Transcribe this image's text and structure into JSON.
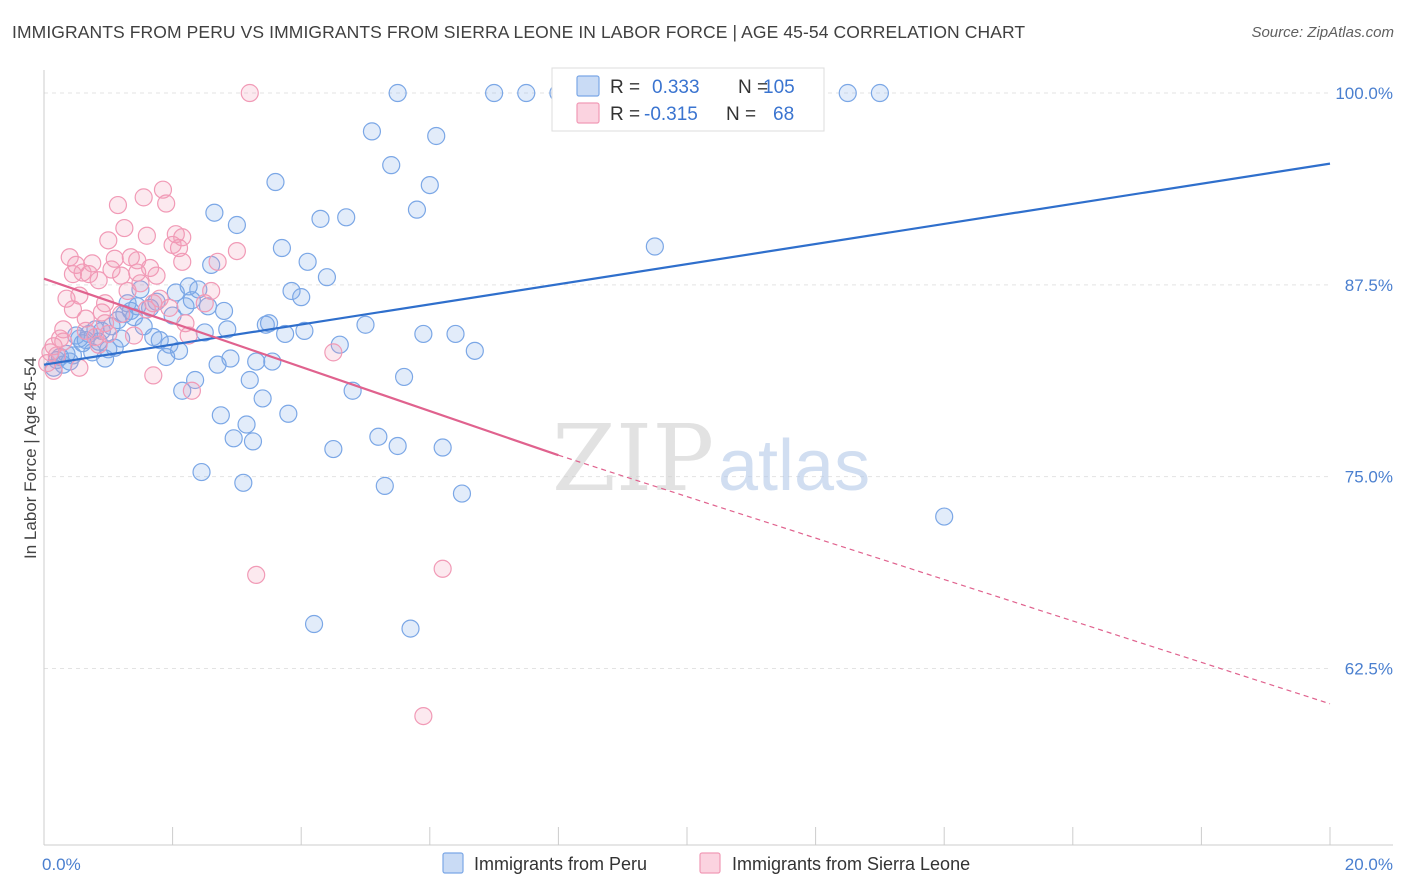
{
  "title": "IMMIGRANTS FROM PERU VS IMMIGRANTS FROM SIERRA LEONE IN LABOR FORCE | AGE 45-54 CORRELATION CHART",
  "source": "Source: ZipAtlas.com",
  "watermark": {
    "zip": "ZIP",
    "atlas": "atlas"
  },
  "legend_top": {
    "r_label": "R =",
    "n_label": "N =",
    "rows": [
      {
        "r": "0.333",
        "n": "105",
        "color": "#7ba7e6"
      },
      {
        "r": "-0.315",
        "n": "68",
        "color": "#f19ab6"
      }
    ]
  },
  "legend_bottom": [
    "Immigrants from Peru",
    "Immigrants from Sierra Leone"
  ],
  "chart_data": {
    "type": "scatter",
    "title": "IMMIGRANTS FROM PERU VS IMMIGRANTS FROM SIERRA LEONE IN LABOR FORCE | AGE 45-54 CORRELATION CHART",
    "xlabel": "",
    "ylabel": "In Labor Force | Age 45-54",
    "xlim": [
      0,
      20
    ],
    "ylim": [
      51.0,
      101.5
    ],
    "x_tick_labels": [
      "0.0%",
      "20.0%"
    ],
    "y_ticks": [
      62.5,
      75.0,
      87.5,
      100.0
    ],
    "y_tick_labels": [
      "62.5%",
      "75.0%",
      "87.5%",
      "100.0%"
    ],
    "grid": true,
    "legend_placement": "top-center",
    "series": [
      {
        "name": "Immigrants from Peru",
        "color": "#7ba7e6",
        "line_color": "#2f6fcc",
        "trend": {
          "x": [
            0.0,
            20.0
          ],
          "y": [
            82.3,
            95.4
          ]
        },
        "points": [
          [
            0.15,
            82.1
          ],
          [
            0.2,
            82.6
          ],
          [
            0.25,
            82.8
          ],
          [
            0.3,
            82.3
          ],
          [
            0.35,
            83.0
          ],
          [
            0.5,
            84.2
          ],
          [
            0.6,
            83.7
          ],
          [
            0.7,
            84.3
          ],
          [
            0.85,
            83.8
          ],
          [
            0.9,
            84.5
          ],
          [
            1.05,
            84.8
          ],
          [
            1.1,
            83.4
          ],
          [
            1.2,
            84.0
          ],
          [
            1.25,
            85.6
          ],
          [
            1.3,
            86.3
          ],
          [
            1.35,
            85.8
          ],
          [
            1.45,
            86.1
          ],
          [
            1.5,
            87.2
          ],
          [
            1.55,
            84.8
          ],
          [
            1.65,
            86.0
          ],
          [
            1.75,
            86.4
          ],
          [
            1.8,
            83.9
          ],
          [
            1.9,
            82.8
          ],
          [
            1.95,
            83.6
          ],
          [
            2.0,
            85.5
          ],
          [
            2.05,
            87.0
          ],
          [
            2.1,
            83.2
          ],
          [
            2.15,
            80.6
          ],
          [
            2.2,
            86.1
          ],
          [
            2.25,
            87.4
          ],
          [
            2.35,
            81.3
          ],
          [
            2.4,
            87.2
          ],
          [
            2.45,
            75.3
          ],
          [
            2.5,
            84.4
          ],
          [
            2.55,
            86.1
          ],
          [
            2.6,
            88.8
          ],
          [
            2.65,
            92.2
          ],
          [
            2.7,
            82.3
          ],
          [
            2.75,
            79.0
          ],
          [
            2.8,
            85.8
          ],
          [
            2.9,
            82.7
          ],
          [
            2.95,
            77.5
          ],
          [
            3.0,
            91.4
          ],
          [
            3.1,
            74.6
          ],
          [
            3.15,
            78.4
          ],
          [
            3.2,
            81.3
          ],
          [
            3.25,
            77.3
          ],
          [
            3.3,
            82.5
          ],
          [
            3.4,
            80.1
          ],
          [
            3.45,
            84.9
          ],
          [
            3.5,
            85.0
          ],
          [
            3.55,
            82.5
          ],
          [
            3.6,
            94.2
          ],
          [
            3.7,
            89.9
          ],
          [
            3.75,
            84.3
          ],
          [
            3.8,
            79.1
          ],
          [
            3.85,
            87.1
          ],
          [
            4.0,
            86.7
          ],
          [
            4.05,
            84.5
          ],
          [
            4.1,
            89.0
          ],
          [
            4.2,
            65.4
          ],
          [
            4.3,
            91.8
          ],
          [
            4.4,
            88.0
          ],
          [
            4.5,
            76.8
          ],
          [
            4.6,
            83.6
          ],
          [
            4.7,
            91.9
          ],
          [
            4.8,
            80.6
          ],
          [
            5.0,
            84.9
          ],
          [
            5.1,
            97.5
          ],
          [
            5.2,
            77.6
          ],
          [
            5.3,
            74.4
          ],
          [
            5.4,
            95.3
          ],
          [
            5.5,
            77.0
          ],
          [
            5.6,
            81.5
          ],
          [
            5.7,
            65.1
          ],
          [
            5.8,
            92.4
          ],
          [
            5.9,
            84.3
          ],
          [
            6.0,
            94.0
          ],
          [
            6.1,
            97.2
          ],
          [
            6.2,
            76.9
          ],
          [
            6.4,
            84.3
          ],
          [
            6.5,
            73.9
          ],
          [
            6.7,
            83.2
          ],
          [
            7.0,
            100.0
          ],
          [
            7.5,
            100.0
          ],
          [
            8.0,
            100.0
          ],
          [
            9.0,
            100.0
          ],
          [
            9.5,
            90.0
          ],
          [
            10.0,
            100.0
          ],
          [
            10.5,
            100.0
          ],
          [
            11.0,
            100.0
          ],
          [
            12.5,
            100.0
          ],
          [
            13.0,
            100.0
          ],
          [
            14.0,
            72.4
          ],
          [
            5.5,
            100.0
          ],
          [
            0.4,
            82.5
          ],
          [
            0.55,
            84.0
          ],
          [
            0.75,
            83.1
          ],
          [
            0.95,
            82.7
          ],
          [
            1.15,
            85.2
          ],
          [
            1.4,
            85.4
          ],
          [
            2.3,
            86.5
          ],
          [
            0.8,
            84.6
          ],
          [
            0.45,
            82.9
          ],
          [
            1.7,
            84.1
          ],
          [
            2.85,
            84.6
          ],
          [
            1.0,
            83.3
          ],
          [
            0.65,
            83.9
          ]
        ]
      },
      {
        "name": "Immigrants from Sierra Leone",
        "color": "#f19ab6",
        "line_color": "#e0628e",
        "trend": {
          "x": [
            0.0,
            8.0
          ],
          "y": [
            87.9,
            76.4
          ]
        },
        "trend_extension": {
          "x": [
            8.0,
            20.0
          ],
          "y": [
            76.4,
            60.2
          ]
        },
        "points": [
          [
            0.05,
            82.4
          ],
          [
            0.1,
            83.1
          ],
          [
            0.15,
            83.5
          ],
          [
            0.2,
            82.9
          ],
          [
            0.25,
            84.0
          ],
          [
            0.3,
            83.8
          ],
          [
            0.35,
            86.6
          ],
          [
            0.4,
            89.3
          ],
          [
            0.45,
            88.2
          ],
          [
            0.5,
            88.8
          ],
          [
            0.55,
            86.8
          ],
          [
            0.6,
            88.3
          ],
          [
            0.65,
            85.3
          ],
          [
            0.7,
            88.2
          ],
          [
            0.75,
            88.9
          ],
          [
            0.8,
            84.1
          ],
          [
            0.85,
            87.8
          ],
          [
            0.9,
            85.7
          ],
          [
            0.95,
            85.0
          ],
          [
            1.0,
            90.4
          ],
          [
            1.05,
            88.5
          ],
          [
            1.1,
            89.2
          ],
          [
            1.15,
            92.7
          ],
          [
            1.2,
            88.1
          ],
          [
            1.25,
            91.2
          ],
          [
            1.3,
            87.1
          ],
          [
            1.35,
            89.3
          ],
          [
            1.4,
            84.2
          ],
          [
            1.45,
            88.3
          ],
          [
            1.5,
            87.6
          ],
          [
            1.55,
            93.2
          ],
          [
            1.6,
            85.9
          ],
          [
            1.65,
            88.6
          ],
          [
            1.7,
            81.6
          ],
          [
            1.75,
            88.1
          ],
          [
            1.8,
            86.6
          ],
          [
            1.85,
            93.7
          ],
          [
            1.9,
            92.8
          ],
          [
            1.95,
            86.0
          ],
          [
            2.0,
            90.1
          ],
          [
            2.05,
            90.8
          ],
          [
            2.1,
            89.9
          ],
          [
            2.15,
            90.6
          ],
          [
            2.2,
            85.0
          ],
          [
            2.25,
            84.2
          ],
          [
            2.3,
            80.6
          ],
          [
            2.5,
            86.3
          ],
          [
            2.6,
            87.1
          ],
          [
            3.0,
            89.7
          ],
          [
            3.2,
            100.0
          ],
          [
            3.3,
            68.6
          ],
          [
            4.5,
            83.1
          ],
          [
            6.2,
            69.0
          ],
          [
            5.9,
            59.4
          ],
          [
            0.55,
            82.1
          ],
          [
            0.65,
            84.5
          ],
          [
            0.85,
            83.6
          ],
          [
            1.0,
            84.3
          ],
          [
            1.2,
            85.6
          ],
          [
            0.15,
            81.9
          ],
          [
            0.3,
            84.6
          ],
          [
            0.45,
            85.9
          ],
          [
            1.7,
            86.3
          ],
          [
            2.15,
            89.0
          ],
          [
            2.7,
            89.0
          ],
          [
            1.45,
            89.1
          ],
          [
            0.95,
            86.3
          ],
          [
            1.6,
            90.7
          ]
        ]
      }
    ]
  }
}
